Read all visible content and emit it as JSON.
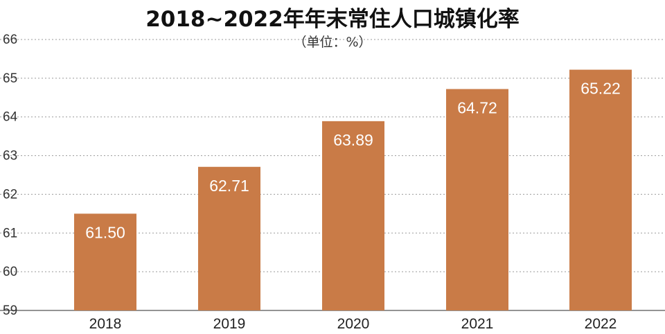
{
  "chart_data": {
    "type": "bar",
    "title": "2018~2022年年末常住人口城镇化率",
    "unit": "（单位：%）",
    "categories": [
      "2018",
      "2019",
      "2020",
      "2021",
      "2022"
    ],
    "values": [
      61.5,
      62.71,
      63.89,
      64.72,
      65.22
    ],
    "value_labels": [
      "61.50",
      "62.71",
      "63.89",
      "64.72",
      "65.22"
    ],
    "y_ticks": [
      59,
      60,
      61,
      62,
      63,
      64,
      65,
      66
    ],
    "ylim": [
      59,
      66
    ],
    "xlabel": "",
    "ylabel": "",
    "grid": true,
    "bar_color": "#C97B47",
    "value_label_color": "#FFFFFF"
  }
}
